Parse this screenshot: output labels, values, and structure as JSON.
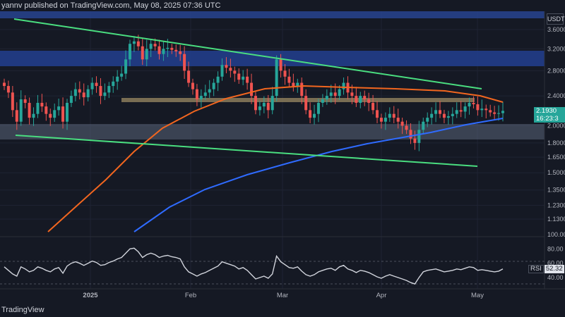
{
  "header": {
    "text": "yannv published on TradingView.com, May 08, 2025 07:36 UTC"
  },
  "currency": "USDT",
  "price_badge": {
    "price": "2.1930",
    "countdown": "16:23:3"
  },
  "rsi": {
    "label": "RSI",
    "value": "52.32"
  },
  "footer": {
    "brand": "TradingView"
  },
  "colors": {
    "background": "#151924",
    "up": "#26a69a",
    "down": "#ef5350",
    "ma_orange": "#f2661f",
    "ma_blue": "#2962ff",
    "channel": "#4ade80",
    "zone_blue": "#1e3a8a",
    "zone_grey": "#4a5568",
    "zone_tan": "#8b7d5c",
    "rsi_line": "#d1d4dc"
  },
  "chart_data": {
    "type": "candlestick",
    "x_ticks": [
      "2025",
      "Feb",
      "Mar",
      "Apr",
      "May"
    ],
    "price_ticks": [
      "3.6000",
      "3.2000",
      "2.8000",
      "2.4000",
      "2.0000",
      "1.8000",
      "1.6500",
      "1.5000",
      "1.3500",
      "1.2300",
      "1.1300"
    ],
    "rsi_ticks": [
      "100.00",
      "80.00",
      "60.00",
      "40.00"
    ],
    "rsi_levels": [
      70,
      30
    ],
    "scale": "log",
    "zones": [
      {
        "name": "resistance-top",
        "y_range": [
          3.62,
          3.8
        ]
      },
      {
        "name": "resistance",
        "y_range": [
          2.85,
          3.1
        ]
      },
      {
        "name": "mid-level",
        "y_range": [
          2.3,
          2.35
        ]
      },
      {
        "name": "support",
        "y_range": [
          1.85,
          2.02
        ]
      }
    ],
    "trendlines": [
      {
        "name": "channel-upper",
        "points": [
          [
            "2024-12-10",
            3.95
          ],
          [
            "2025-05-05",
            2.5
          ]
        ]
      },
      {
        "name": "channel-lower",
        "points": [
          [
            "2024-12-10",
            1.9
          ],
          [
            "2025-05-05",
            1.57
          ]
        ]
      }
    ],
    "moving_averages": [
      {
        "name": "ma-orange",
        "points": [
          [
            "2024-12-16",
            1.03
          ],
          [
            "2025-01-15",
            1.33
          ],
          [
            "2025-02-01",
            1.8
          ],
          [
            "2025-02-20",
            2.2
          ],
          [
            "2025-03-05",
            2.45
          ],
          [
            "2025-03-20",
            2.49
          ],
          [
            "2025-04-15",
            2.45
          ],
          [
            "2025-05-10",
            2.3
          ]
        ]
      },
      {
        "name": "ma-blue",
        "points": [
          [
            "2025-01-04",
            1.03
          ],
          [
            "2025-01-28",
            1.3
          ],
          [
            "2025-02-20",
            1.55
          ],
          [
            "2025-03-15",
            1.77
          ],
          [
            "2025-04-05",
            1.88
          ],
          [
            "2025-04-25",
            1.99
          ],
          [
            "2025-05-10",
            2.07
          ]
        ]
      }
    ],
    "candles_close": [
      2.55,
      2.45,
      2.2,
      2.05,
      2.35,
      2.3,
      2.1,
      2.15,
      2.3,
      2.25,
      2.15,
      2.1,
      2.2,
      2.25,
      2.05,
      2.3,
      2.4,
      2.5,
      2.45,
      2.38,
      2.5,
      2.6,
      2.55,
      2.4,
      2.45,
      2.55,
      2.62,
      2.7,
      2.75,
      3.0,
      3.3,
      3.35,
      3.25,
      3.0,
      3.2,
      3.3,
      3.25,
      3.1,
      3.2,
      3.22,
      3.18,
      3.15,
      3.1,
      2.8,
      2.6,
      2.5,
      2.35,
      2.4,
      2.45,
      2.5,
      2.6,
      2.7,
      2.9,
      2.85,
      2.8,
      2.75,
      2.65,
      2.7,
      2.6,
      2.4,
      2.2,
      2.25,
      2.3,
      2.2,
      2.4,
      3.0,
      2.8,
      2.7,
      2.6,
      2.55,
      2.6,
      2.4,
      2.2,
      2.1,
      2.15,
      2.3,
      2.35,
      2.4,
      2.45,
      2.4,
      2.5,
      2.6,
      2.45,
      2.4,
      2.3,
      2.4,
      2.35,
      2.3,
      2.2,
      2.1,
      2.05,
      2.1,
      2.15,
      2.1,
      2.05,
      2.0,
      1.95,
      1.85,
      1.8,
      1.95,
      2.05,
      2.1,
      2.15,
      2.2,
      2.15,
      2.1,
      2.12,
      2.15,
      2.2,
      2.18,
      2.25,
      2.3,
      2.28,
      2.2,
      2.22,
      2.2,
      2.17,
      2.15,
      2.16,
      2.19
    ],
    "rsi_values": [
      55,
      50,
      45,
      42,
      55,
      52,
      48,
      50,
      55,
      53,
      50,
      48,
      52,
      54,
      46,
      56,
      60,
      62,
      60,
      57,
      60,
      63,
      61,
      57,
      58,
      61,
      63,
      66,
      68,
      74,
      80,
      81,
      76,
      68,
      72,
      74,
      72,
      68,
      70,
      71,
      69,
      68,
      66,
      55,
      48,
      45,
      42,
      45,
      47,
      50,
      53,
      56,
      62,
      60,
      58,
      56,
      52,
      54,
      50,
      44,
      38,
      40,
      42,
      39,
      45,
      70,
      62,
      58,
      54,
      53,
      55,
      49,
      44,
      42,
      44,
      48,
      50,
      52,
      53,
      50,
      55,
      57,
      52,
      50,
      47,
      50,
      49,
      47,
      44,
      41,
      39,
      42,
      44,
      42,
      40,
      38,
      36,
      33,
      31,
      40,
      48,
      50,
      51,
      52,
      50,
      48,
      49,
      50,
      52,
      51,
      53,
      55,
      54,
      50,
      51,
      50,
      49,
      48,
      49,
      52
    ]
  }
}
